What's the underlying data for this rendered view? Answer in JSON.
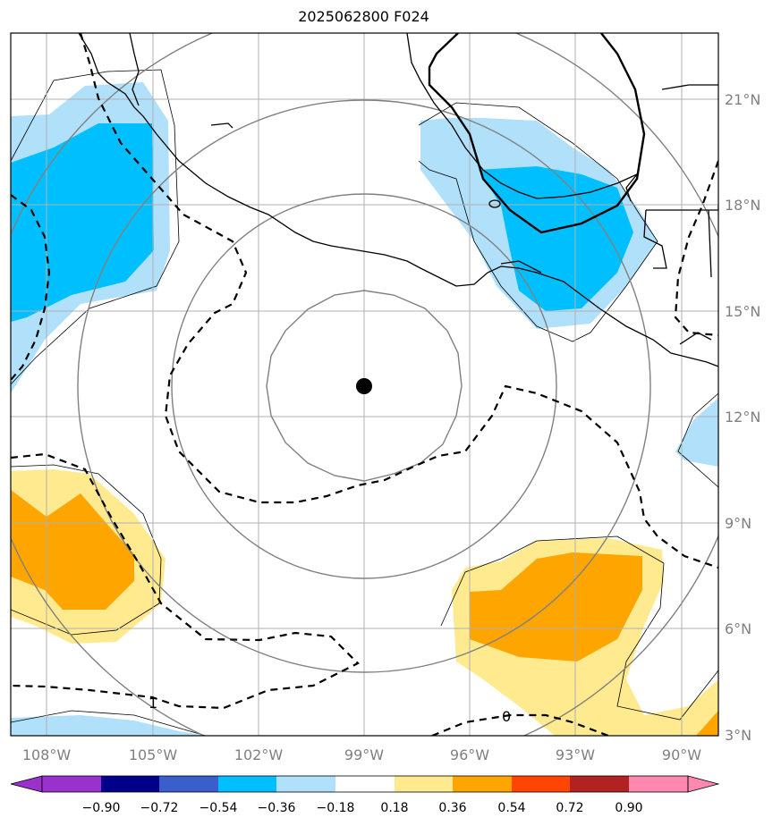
{
  "title": "2025062800 F024",
  "map": {
    "region": "Eastern Pacific off southern Mexico",
    "center_marker": {
      "lon": -99.0,
      "lat": 12.8
    },
    "lat_ticks": [
      "21°N",
      "18°N",
      "15°N",
      "12°N",
      "9°N",
      "6°N",
      "3°N"
    ],
    "lon_ticks": [
      "108°W",
      "105°W",
      "102°W",
      "99°W",
      "96°W",
      "93°W",
      "90°W"
    ],
    "dashed_contour_labels": [
      "1",
      "0"
    ],
    "colors": {
      "coastline": "#000000",
      "gridlines": "#b0b0b0",
      "range_rings": "#808080",
      "dashed_contours": "#000000"
    }
  },
  "colorbar": {
    "labels": [
      "−0.90",
      "−0.72",
      "−0.54",
      "−0.36",
      "−0.18",
      "0.18",
      "0.36",
      "0.54",
      "0.72",
      "0.90"
    ],
    "colors": [
      "#9932cc",
      "#00008b",
      "#3a5fcd",
      "#00bfff",
      "#b0e0fa",
      "#ffffff",
      "#ffea8f",
      "#ffa500",
      "#ff4500",
      "#b22222",
      "#ff88b0"
    ]
  }
}
